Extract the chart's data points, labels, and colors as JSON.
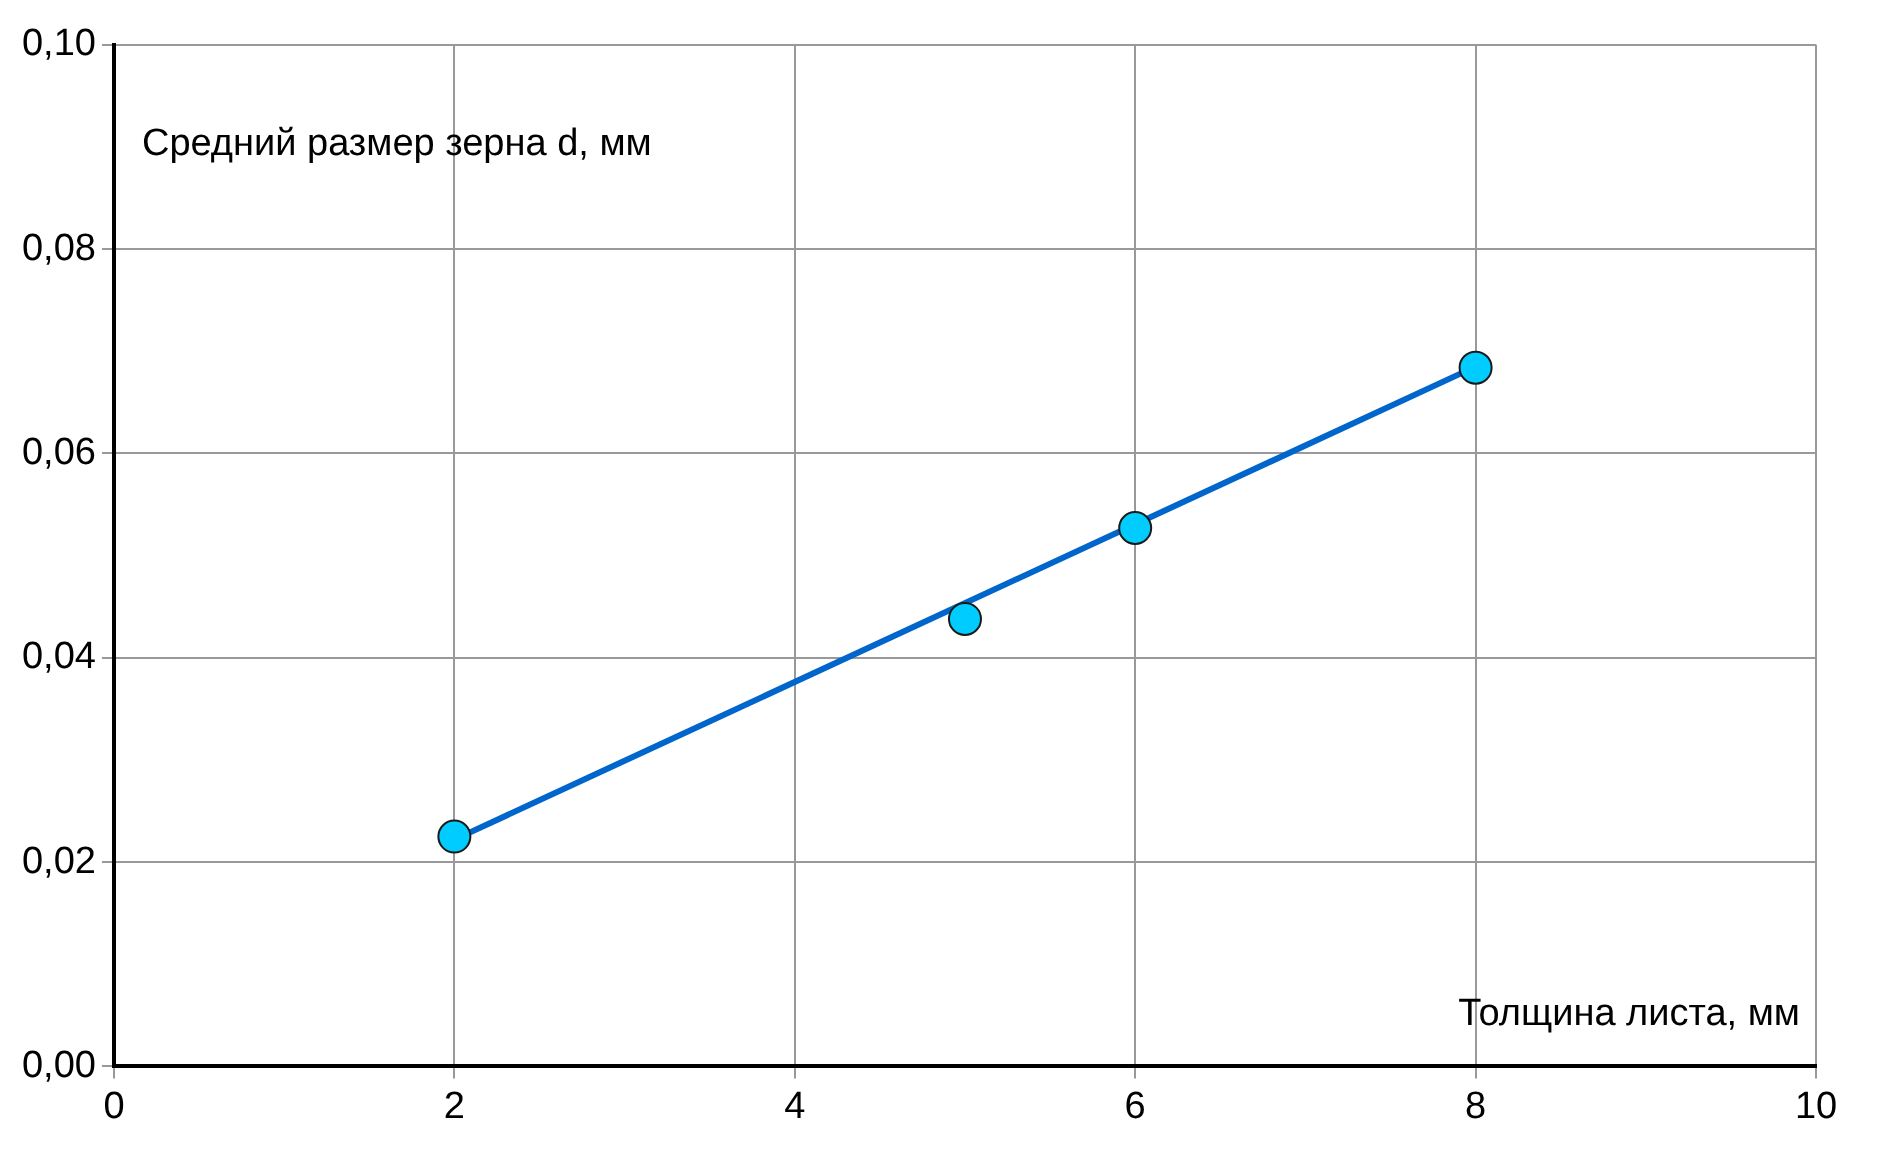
{
  "chart_data": {
    "type": "scatter",
    "xlabel": "Толщина листа, мм",
    "ylabel": "Средний размер зерна d, мм",
    "series": [
      {
        "type": "scatter",
        "color": "#00ccff",
        "marker": "circle",
        "x": [
          2,
          5,
          6,
          8
        ],
        "values": [
          0.0225,
          0.0438,
          0.0527,
          0.0684
        ]
      },
      {
        "type": "line",
        "color": "#0066cc",
        "marker": "none",
        "x": [
          2,
          8
        ],
        "values": [
          0.0222,
          0.0685
        ]
      }
    ],
    "grid": true,
    "legend": false,
    "xlim": [
      0,
      10
    ],
    "xticks": [
      0,
      2,
      4,
      6,
      8,
      10
    ],
    "ylim": [
      0,
      0.1
    ],
    "yticks": [
      {
        "value": 0,
        "label": "0,00"
      },
      {
        "value": 0.02,
        "label": "0,02"
      },
      {
        "value": 0.04,
        "label": "0,04"
      },
      {
        "value": 0.06,
        "label": "0,06"
      },
      {
        "value": 0.08,
        "label": "0,08"
      },
      {
        "value": 0.1,
        "label": "0,10"
      }
    ]
  }
}
